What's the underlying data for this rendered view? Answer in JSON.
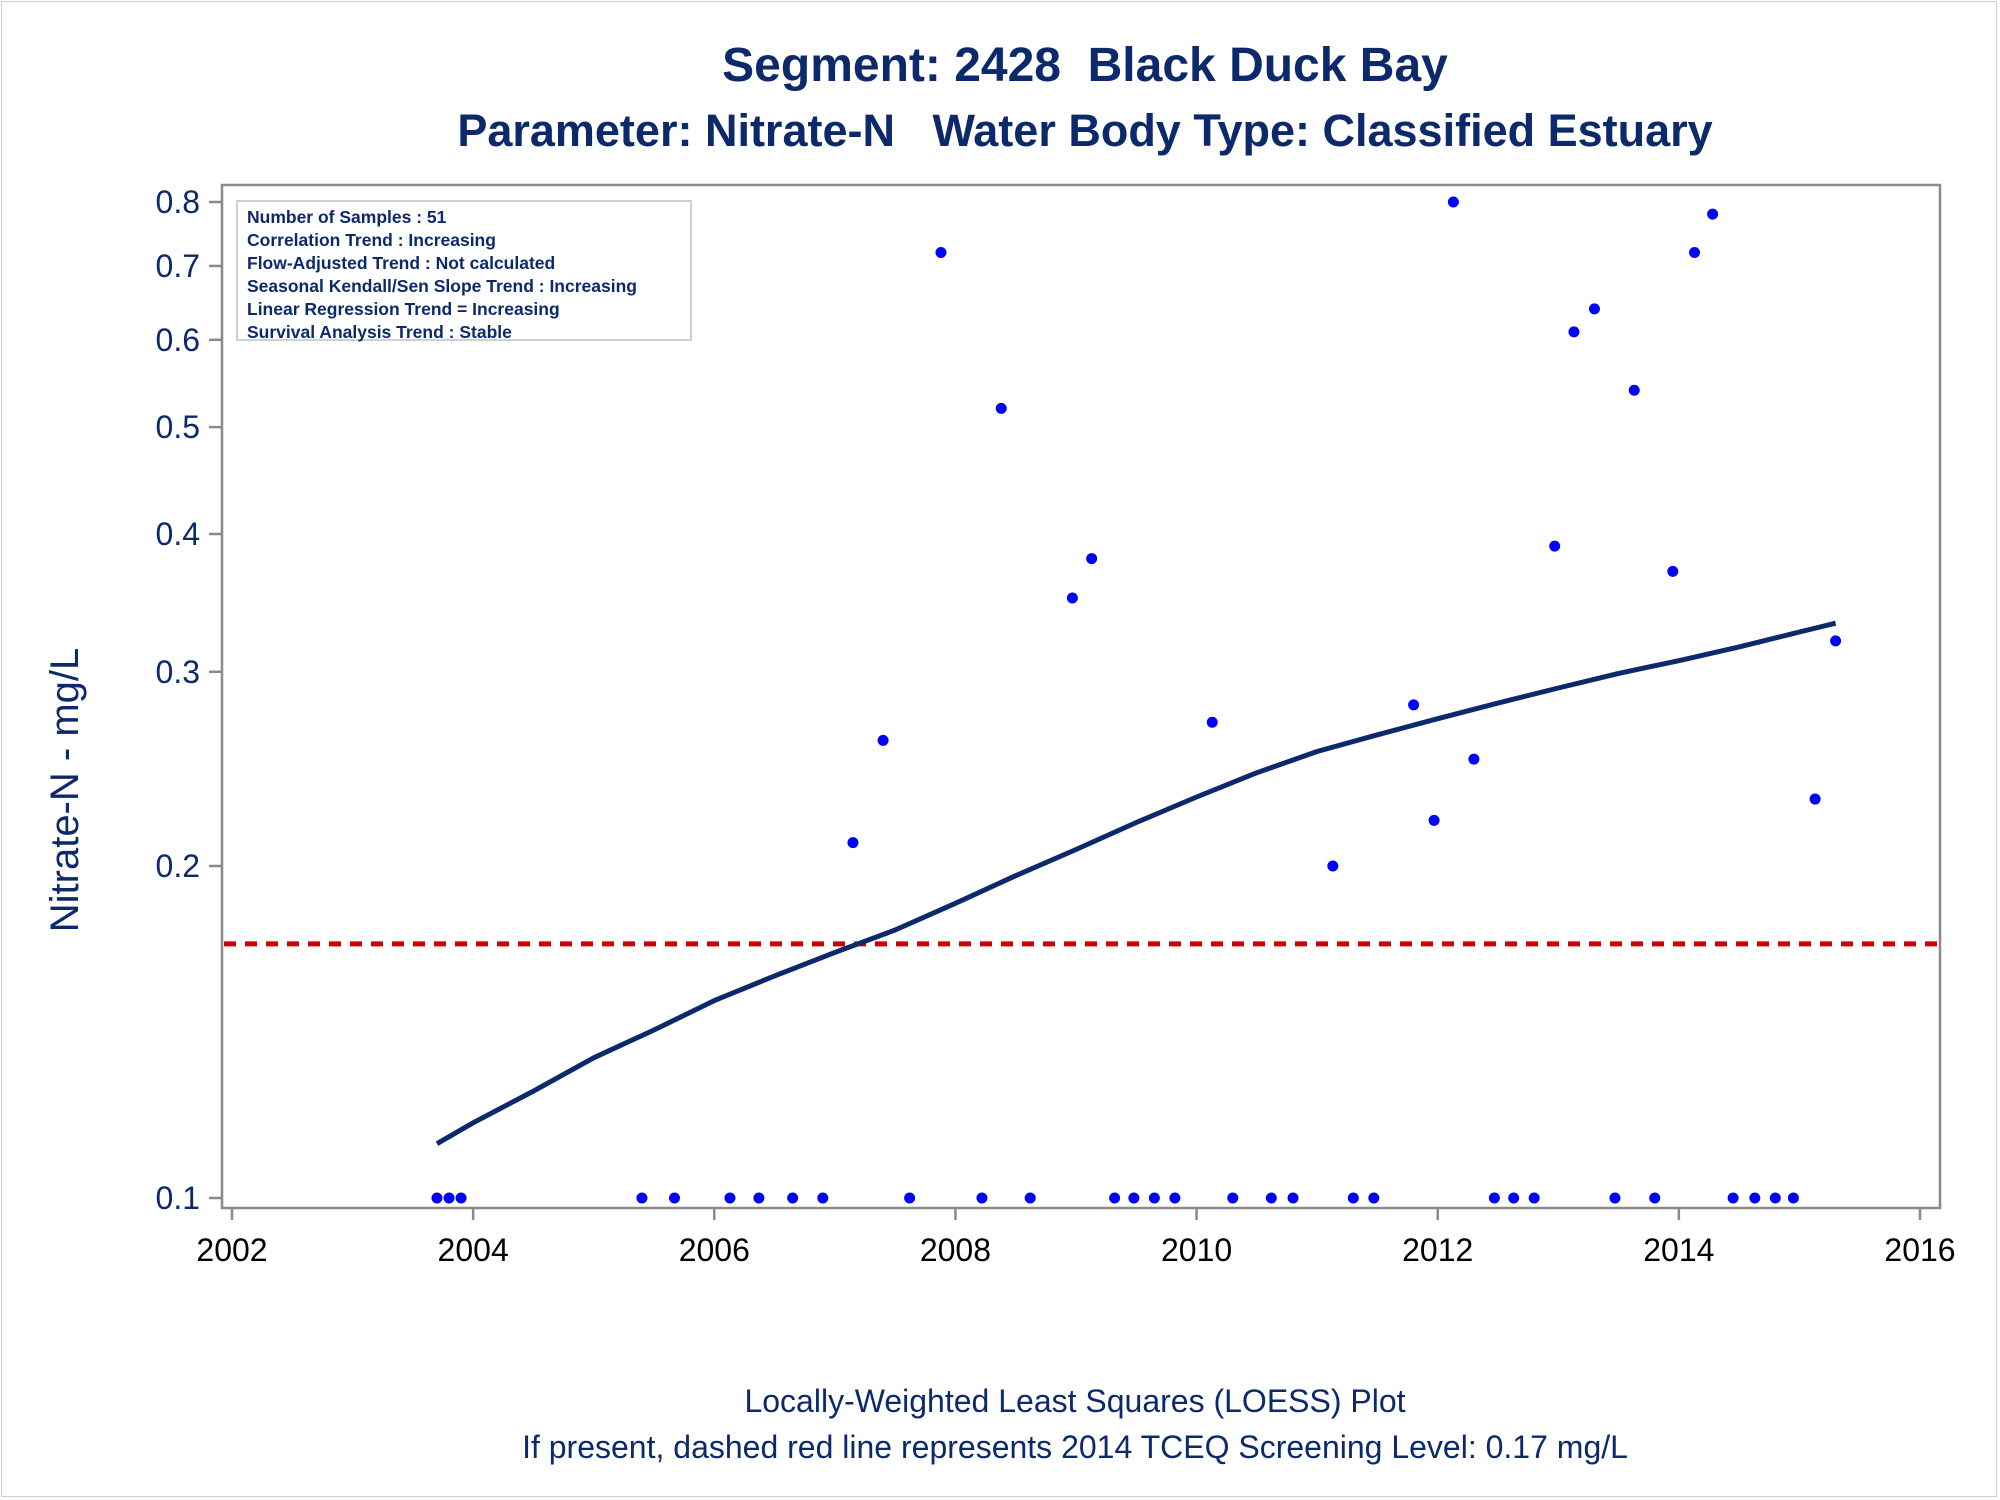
{
  "titles": {
    "title": "Segment: 2428  Black Duck Bay",
    "subtitle": "Parameter: Nitrate-N   Water Body Type: Classified Estuary"
  },
  "footnotes": {
    "line1": "Locally-Weighted Least Squares (LOESS) Plot",
    "line2": "If present, dashed red line represents 2014 TCEQ Screening Level: 0.17 mg/L"
  },
  "stats_box": {
    "lines": [
      "Number of Samples : 51",
      "Correlation Trend : Increasing",
      "Flow-Adjusted Trend : Not calculated",
      "Seasonal Kendall/Sen Slope Trend : Increasing",
      "Linear Regression Trend = Increasing",
      "Survival Analysis Trend : Stable"
    ]
  },
  "colors": {
    "points": "#0000ff",
    "loess": "#0c2a6b",
    "screening": "#cc0000",
    "text": "#0c2a6b"
  },
  "chart_data": {
    "type": "scatter",
    "ylabel": "Nitrate-N - mg/L",
    "yscale": "log",
    "xlim": [
      2002,
      2016
    ],
    "ylim": [
      0.098,
      0.8
    ],
    "xticks": [
      2002,
      2004,
      2006,
      2008,
      2010,
      2012,
      2014,
      2016
    ],
    "yticks": [
      0.1,
      0.2,
      0.3,
      0.4,
      0.5,
      0.6,
      0.7,
      0.8
    ],
    "grid": false,
    "series": [
      {
        "kind": "points",
        "x": [
          2003.7,
          2003.8,
          2003.9,
          2005.4,
          2005.67,
          2006.13,
          2006.37,
          2006.65,
          2006.9,
          2007.15,
          2007.4,
          2007.62,
          2007.88,
          2008.22,
          2008.38,
          2008.62,
          2008.97,
          2009.13,
          2009.32,
          2009.48,
          2009.65,
          2009.82,
          2010.13,
          2010.3,
          2010.62,
          2010.8,
          2011.13,
          2011.3,
          2011.47,
          2011.8,
          2011.97,
          2012.13,
          2012.3,
          2012.47,
          2012.63,
          2012.8,
          2012.97,
          2013.13,
          2013.3,
          2013.47,
          2013.63,
          2013.8,
          2013.95,
          2014.13,
          2014.28,
          2014.45,
          2014.63,
          2014.8,
          2014.95,
          2015.13,
          2015.3
        ],
        "y": [
          0.1,
          0.1,
          0.1,
          0.1,
          0.1,
          0.1,
          0.1,
          0.1,
          0.1,
          0.21,
          0.26,
          0.1,
          0.72,
          0.1,
          0.52,
          0.1,
          0.35,
          0.38,
          0.1,
          0.1,
          0.1,
          0.1,
          0.27,
          0.1,
          0.1,
          0.1,
          0.2,
          0.1,
          0.1,
          0.28,
          0.22,
          0.8,
          0.25,
          0.1,
          0.1,
          0.1,
          0.39,
          0.61,
          0.64,
          0.1,
          0.54,
          0.1,
          0.37,
          0.72,
          0.78,
          0.1,
          0.1,
          0.1,
          0.1,
          0.23,
          0.32
        ]
      },
      {
        "kind": "loess",
        "x": [
          2003.7,
          2004.0,
          2004.5,
          2005.0,
          2005.5,
          2006.0,
          2006.5,
          2007.0,
          2007.5,
          2008.0,
          2008.5,
          2009.0,
          2009.5,
          2010.0,
          2010.5,
          2011.0,
          2011.5,
          2012.0,
          2012.5,
          2013.0,
          2013.5,
          2014.0,
          2014.5,
          2015.0,
          2015.3
        ],
        "y": [
          0.112,
          0.117,
          0.125,
          0.134,
          0.142,
          0.151,
          0.159,
          0.167,
          0.175,
          0.185,
          0.196,
          0.207,
          0.219,
          0.231,
          0.243,
          0.254,
          0.263,
          0.272,
          0.281,
          0.29,
          0.299,
          0.307,
          0.316,
          0.326,
          0.332
        ]
      }
    ],
    "reference_line": {
      "y": 0.17,
      "style": "dashed",
      "label": "2014 TCEQ Screening Level"
    }
  }
}
